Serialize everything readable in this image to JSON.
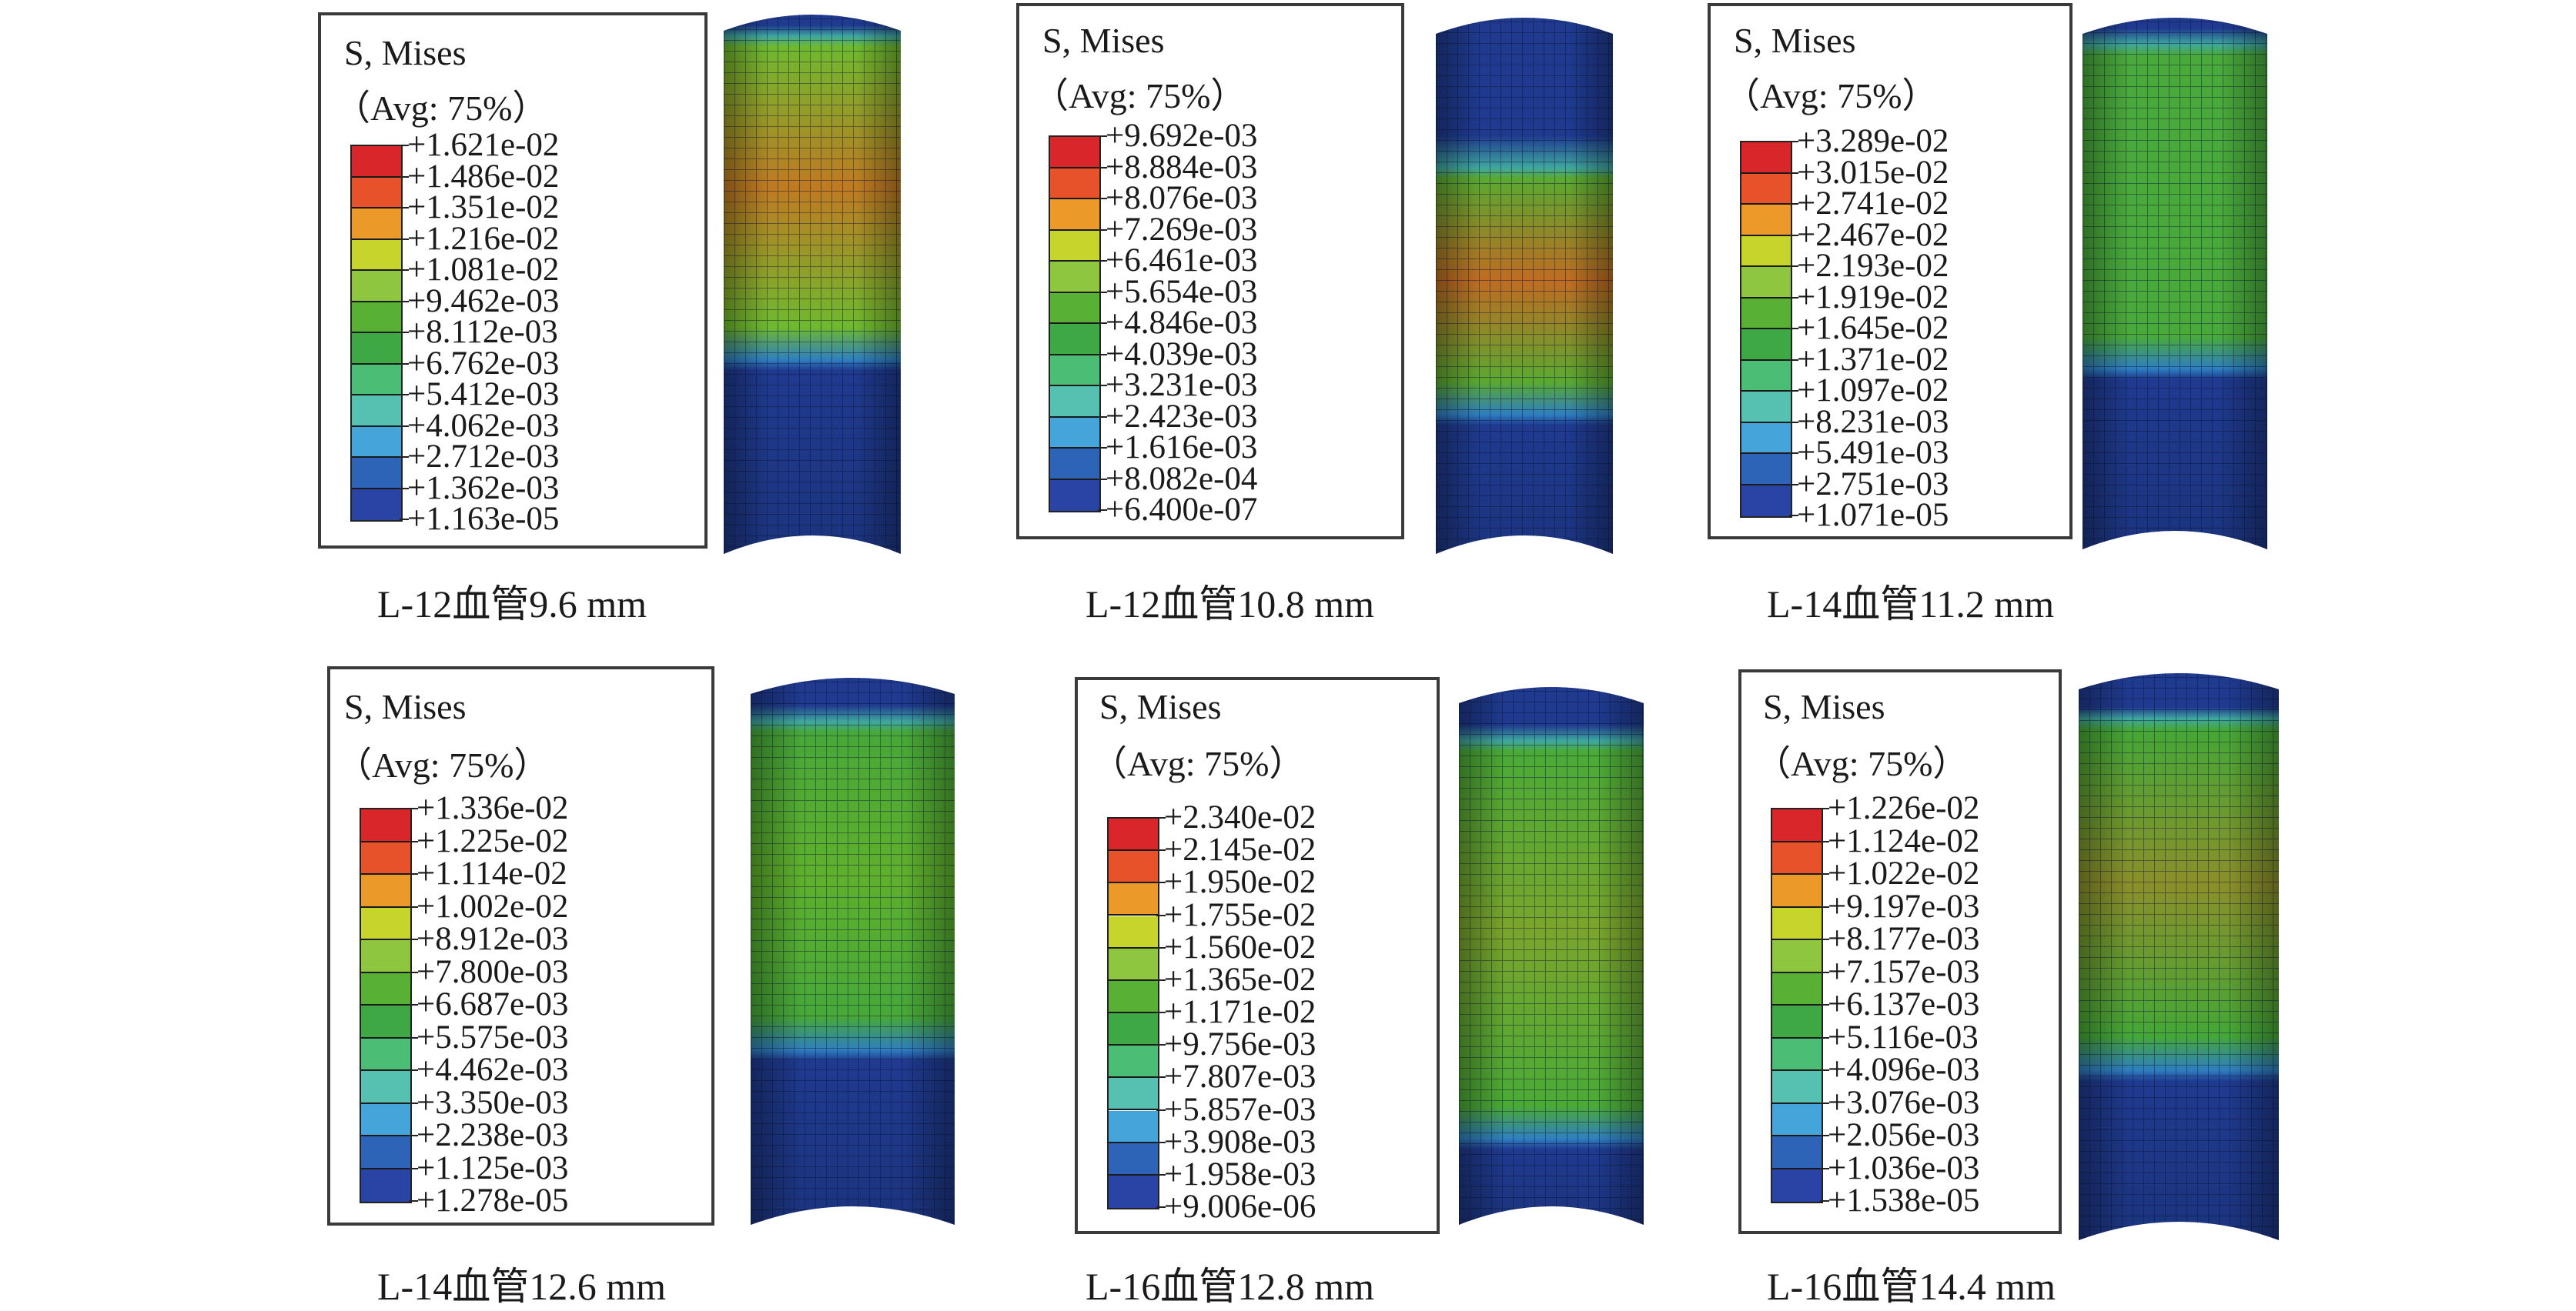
{
  "colormap": [
    "#d9262a",
    "#e8522a",
    "#eb9a2a",
    "#c6d42c",
    "#8ec63f",
    "#58b134",
    "#3ea845",
    "#4bbd74",
    "#56c1b0",
    "#45a4d9",
    "#2d64b8",
    "#2a44a6",
    "#1f3b94"
  ],
  "panels": [
    {
      "title": "S, Mises",
      "avg": "（Avg: 75%）",
      "caption": "L-12血管9.6 mm",
      "labels": [
        "+1.621e-02",
        "+1.486e-02",
        "+1.351e-02",
        "+1.216e-02",
        "+1.081e-02",
        "+9.462e-03",
        "+8.112e-03",
        "+6.762e-03",
        "+5.412e-03",
        "+4.062e-03",
        "+2.712e-03",
        "+1.362e-03",
        "+1.163e-05"
      ]
    },
    {
      "title": "S, Mises",
      "avg": "（Avg: 75%）",
      "caption": "L-12血管10.8 mm",
      "labels": [
        "+9.692e-03",
        "+8.884e-03",
        "+8.076e-03",
        "+7.269e-03",
        "+6.461e-03",
        "+5.654e-03",
        "+4.846e-03",
        "+4.039e-03",
        "+3.231e-03",
        "+2.423e-03",
        "+1.616e-03",
        "+8.082e-04",
        "+6.400e-07"
      ]
    },
    {
      "title": "S, Mises",
      "avg": "（Avg: 75%）",
      "caption": "L-14血管11.2 mm",
      "labels": [
        "+3.289e-02",
        "+3.015e-02",
        "+2.741e-02",
        "+2.467e-02",
        "+2.193e-02",
        "+1.919e-02",
        "+1.645e-02",
        "+1.371e-02",
        "+1.097e-02",
        "+8.231e-03",
        "+5.491e-03",
        "+2.751e-03",
        "+1.071e-05"
      ]
    },
    {
      "title": "S, Mises",
      "avg": "（Avg: 75%）",
      "caption": "L-14血管12.6 mm",
      "labels": [
        "+1.336e-02",
        "+1.225e-02",
        "+1.114e-02",
        "+1.002e-02",
        "+8.912e-03",
        "+7.800e-03",
        "+6.687e-03",
        "+5.575e-03",
        "+4.462e-03",
        "+3.350e-03",
        "+2.238e-03",
        "+1.125e-03",
        "+1.278e-05"
      ]
    },
    {
      "title": "S, Mises",
      "avg": "（Avg: 75%）",
      "caption": "L-16血管12.8 mm",
      "labels": [
        "+2.340e-02",
        "+2.145e-02",
        "+1.950e-02",
        "+1.755e-02",
        "+1.560e-02",
        "+1.365e-02",
        "+1.171e-02",
        "+9.756e-03",
        "+7.807e-03",
        "+5.857e-03",
        "+3.908e-03",
        "+1.958e-03",
        "+9.006e-06"
      ]
    },
    {
      "title": "S, Mises",
      "avg": "（Avg: 75%）",
      "caption": "L-16血管14.4 mm",
      "labels": [
        "+1.226e-02",
        "+1.124e-02",
        "+1.022e-02",
        "+9.197e-03",
        "+8.177e-03",
        "+7.157e-03",
        "+6.137e-03",
        "+5.116e-03",
        "+4.096e-03",
        "+3.076e-03",
        "+2.056e-03",
        "+1.036e-03",
        "+1.538e-05"
      ]
    }
  ]
}
